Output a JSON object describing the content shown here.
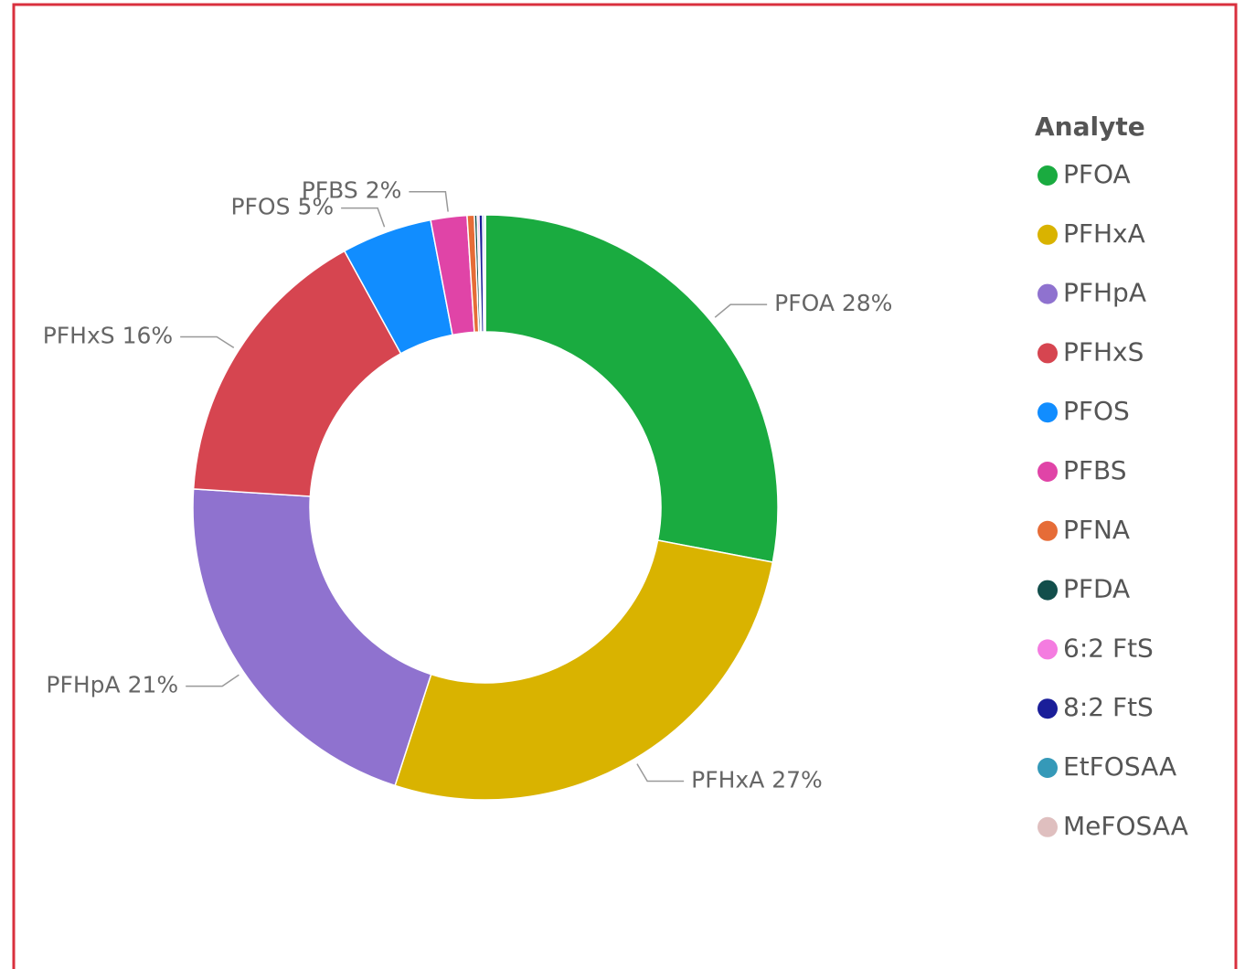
{
  "chart_data": {
    "type": "pie",
    "hole": 0.6,
    "legend_title": "Analyte",
    "legend": "right",
    "categories": [
      "PFOA",
      "PFHxA",
      "PFHpA",
      "PFHxS",
      "PFOS",
      "PFBS",
      "PFNA",
      "PFDA",
      "6:2 FtS",
      "8:2 FtS",
      "EtFOSAA",
      "MeFOSAA"
    ],
    "values": [
      28,
      27,
      21,
      16,
      5,
      2,
      0.4,
      0.15,
      0.1,
      0.2,
      0.1,
      0.05
    ],
    "value_labels": [
      "28%",
      "27%",
      "21%",
      "16%",
      "5%",
      "2%",
      null,
      null,
      null,
      null,
      null,
      null
    ],
    "colors": [
      "#1aab40",
      "#d9b300",
      "#8f72cf",
      "#d64550",
      "#118dff",
      "#e044a7",
      "#e66c37",
      "#124e4b",
      "#f47ce0",
      "#1a1e99",
      "#3599b8",
      "#dfbfbf"
    ]
  }
}
